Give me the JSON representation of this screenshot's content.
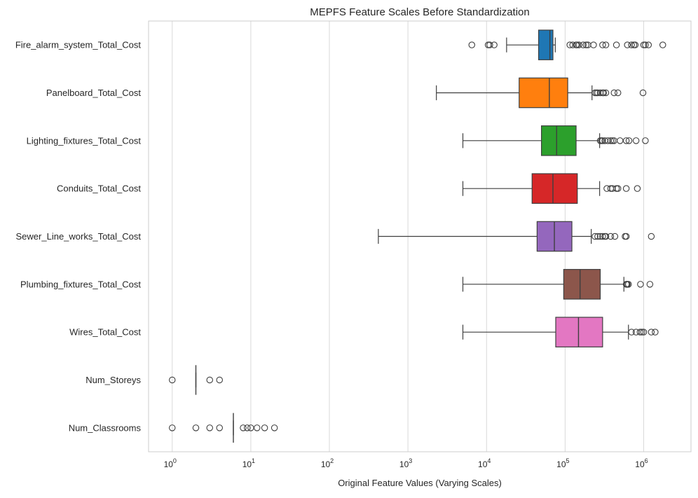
{
  "chart_data": {
    "type": "box",
    "title": "MEPFS Feature Scales Before Standardization",
    "xlabel": "Original Feature Values (Varying Scales)",
    "ylabel": "",
    "xscale": "log",
    "xlim": [
      0.5,
      4000000
    ],
    "xticks": [
      {
        "value": 1,
        "base": "10",
        "exp": "0"
      },
      {
        "value": 10,
        "base": "10",
        "exp": "1"
      },
      {
        "value": 100,
        "base": "10",
        "exp": "2"
      },
      {
        "value": 1000,
        "base": "10",
        "exp": "3"
      },
      {
        "value": 10000,
        "base": "10",
        "exp": "4"
      },
      {
        "value": 100000,
        "base": "10",
        "exp": "5"
      },
      {
        "value": 1000000,
        "base": "10",
        "exp": "6"
      }
    ],
    "grid": "vertical",
    "categories": [
      "Fire_alarm_system_Total_Cost",
      "Panelboard_Total_Cost",
      "Lighting_fixtures_Total_Cost",
      "Conduits_Total_Cost",
      "Sewer_Line_works_Total_Cost",
      "Plumbing_fixtures_Total_Cost",
      "Wires_Total_Cost",
      "Num_Storeys",
      "Num_Classrooms"
    ],
    "boxes": [
      {
        "color": "#1f77b4",
        "whislo": 18000,
        "q1": 46000,
        "median": 64000,
        "q3": 70000,
        "whishi": 75000,
        "outliers": [
          6500,
          10500,
          11000,
          12500,
          115000,
          125000,
          138000,
          142000,
          150000,
          170000,
          185000,
          195000,
          230000,
          300000,
          330000,
          450000,
          620000,
          700000,
          750000,
          780000,
          1000000,
          1050000,
          1150000,
          1750000
        ]
      },
      {
        "color": "#ff7f0e",
        "whislo": 2300,
        "q1": 26000,
        "median": 63000,
        "q3": 108000,
        "whishi": 220000,
        "outliers": [
          240000,
          250000,
          260000,
          280000,
          300000,
          310000,
          330000,
          420000,
          470000,
          980000
        ]
      },
      {
        "color": "#2ca02c",
        "whislo": 5000,
        "q1": 50000,
        "median": 78000,
        "q3": 138000,
        "whishi": 275000,
        "outliers": [
          280000,
          290000,
          300000,
          320000,
          350000,
          380000,
          400000,
          420000,
          500000,
          600000,
          650000,
          800000,
          1050000
        ]
      },
      {
        "color": "#d62728",
        "whislo": 5000,
        "q1": 38000,
        "median": 70000,
        "q3": 143000,
        "whishi": 275000,
        "outliers": [
          340000,
          380000,
          400000,
          450000,
          470000,
          600000,
          830000
        ]
      },
      {
        "color": "#9467bd",
        "whislo": 420,
        "q1": 44000,
        "median": 73000,
        "q3": 122000,
        "whishi": 215000,
        "outliers": [
          240000,
          260000,
          280000,
          300000,
          320000,
          330000,
          380000,
          430000,
          580000,
          600000,
          1250000
        ]
      },
      {
        "color": "#8c564b",
        "whislo": 5000,
        "q1": 96000,
        "median": 155000,
        "q3": 280000,
        "whishi": 560000,
        "outliers": [
          600000,
          610000,
          620000,
          640000,
          910000,
          1200000
        ]
      },
      {
        "color": "#e377c2",
        "whislo": 5000,
        "q1": 76000,
        "median": 148000,
        "q3": 300000,
        "whishi": 640000,
        "outliers": [
          700000,
          800000,
          900000,
          950000,
          1000000,
          1250000,
          1400000
        ]
      },
      {
        "color": "#7f7f7f",
        "whislo": 2,
        "q1": 2,
        "median": 2,
        "q3": 2,
        "whishi": 2,
        "outliers": [
          1,
          3,
          4
        ]
      },
      {
        "color": "#bcbd22",
        "whislo": 6,
        "q1": 6,
        "median": 6,
        "q3": 6,
        "whishi": 6,
        "outliers": [
          1,
          2,
          3,
          4,
          8,
          9,
          10,
          12,
          15,
          20
        ]
      }
    ]
  }
}
